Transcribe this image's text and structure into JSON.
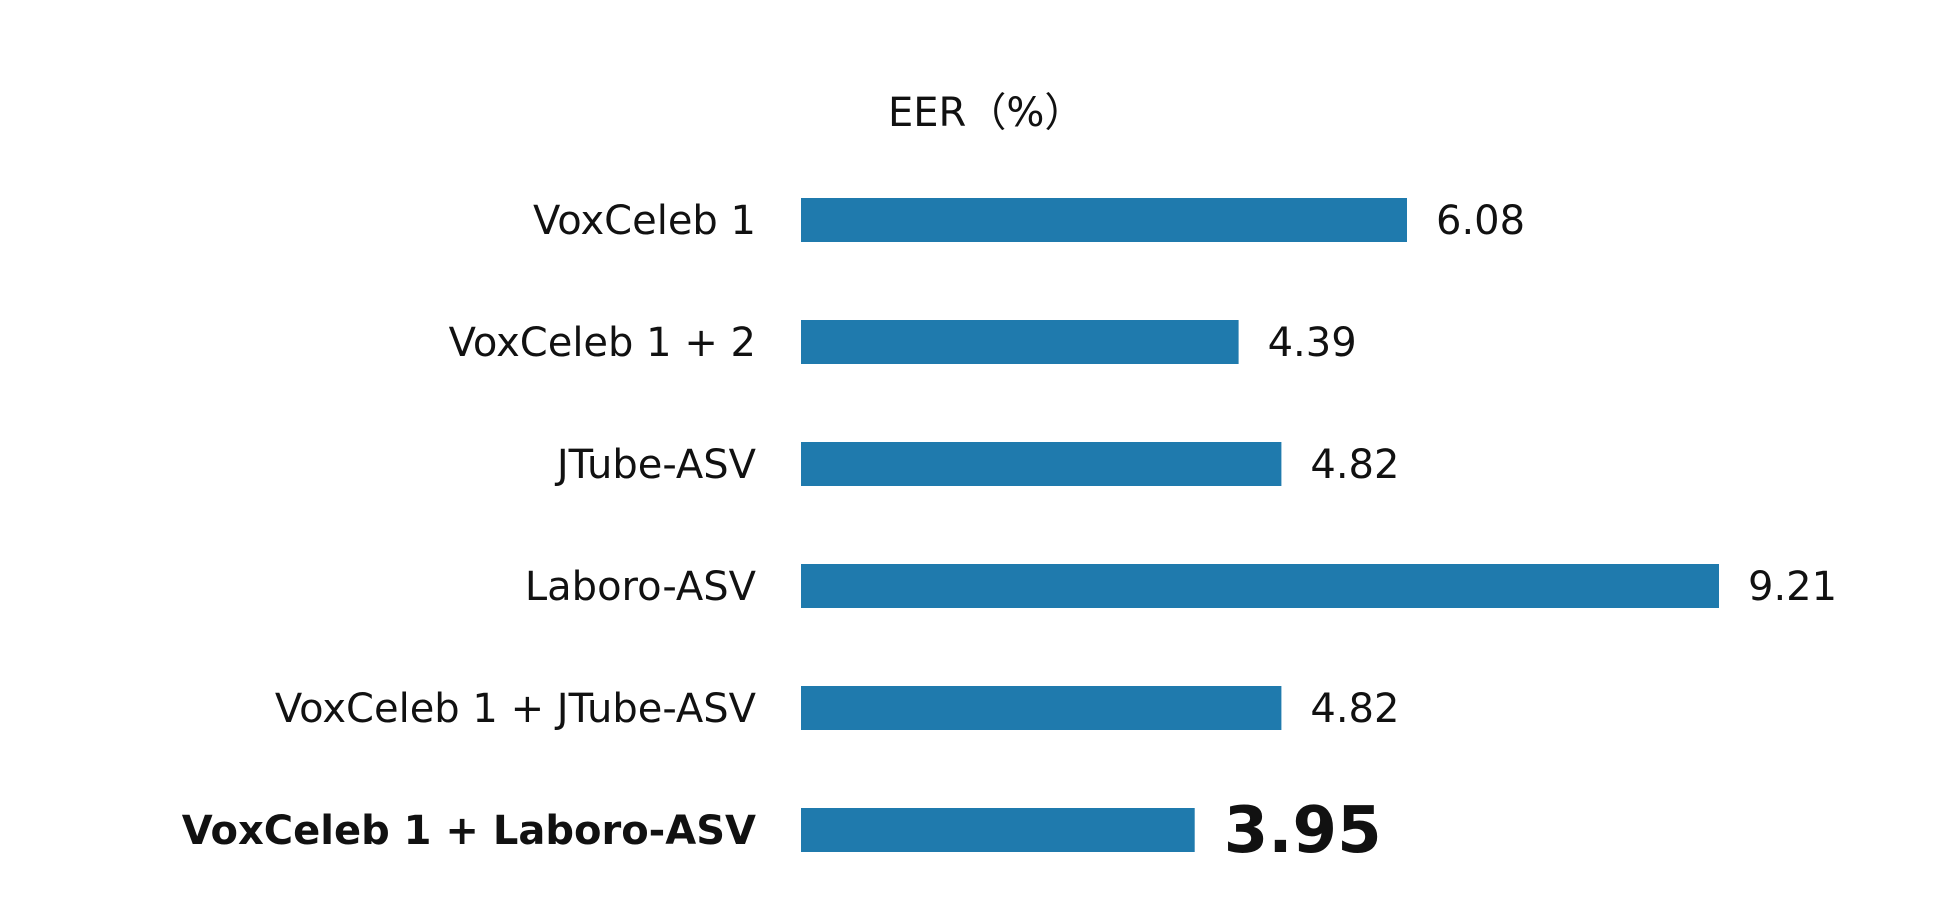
{
  "chart_data": {
    "type": "bar",
    "orientation": "horizontal",
    "title": "",
    "xlabel": "EER（%）",
    "ylabel": "",
    "categories": [
      "VoxCeleb 1",
      "VoxCeleb 1 + 2",
      "JTube-ASV",
      "Laboro-ASV",
      "VoxCeleb 1 + JTube-ASV",
      "VoxCeleb 1 + Laboro-ASV"
    ],
    "values": [
      6.08,
      4.39,
      4.82,
      9.21,
      4.82,
      3.95
    ],
    "value_labels": [
      "6.08",
      "4.39",
      "4.82",
      "9.21",
      "4.82",
      "3.95"
    ],
    "highlight_index": 5,
    "xlim": [
      0,
      9.21
    ],
    "grid": false,
    "legend": "none",
    "colors": {
      "bar": "#1f7aad",
      "highlight_text": "#1f7aad",
      "text": "#111111"
    }
  }
}
